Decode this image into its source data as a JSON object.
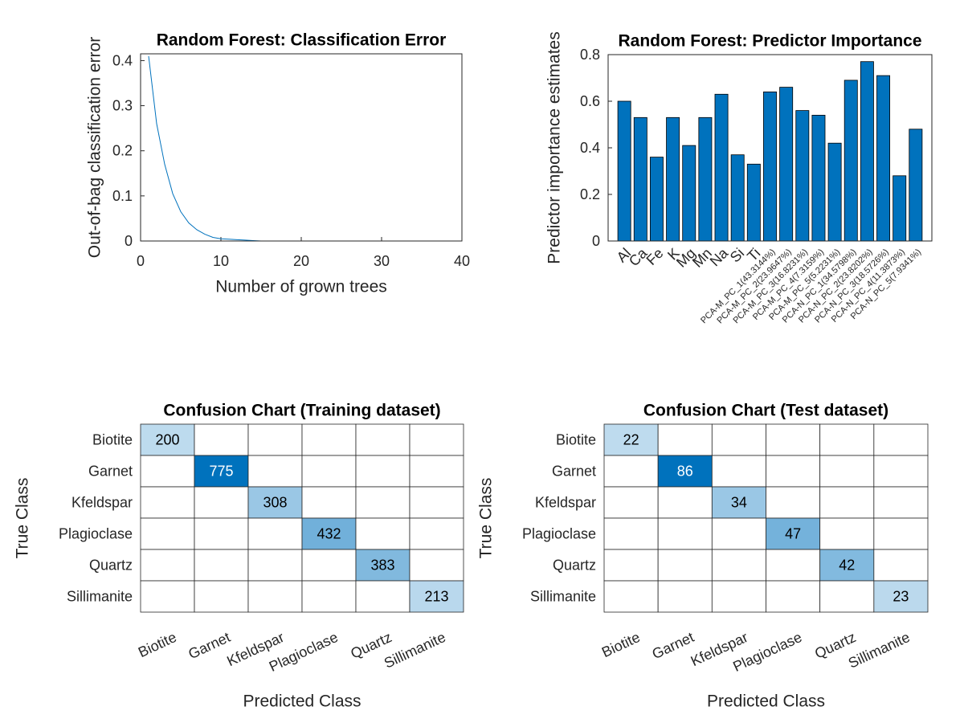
{
  "chart_data": [
    {
      "type": "line",
      "title": "Random Forest: Classification Error",
      "xlabel": "Number of grown trees",
      "ylabel": "Out-of-bag classification error",
      "x": [
        1,
        2,
        3,
        4,
        5,
        6,
        7,
        8,
        9,
        10,
        11,
        12,
        13,
        14,
        15,
        16,
        17,
        18,
        19,
        20,
        21,
        22,
        23,
        24,
        25,
        26,
        27,
        28,
        29,
        30,
        31,
        32,
        33,
        34,
        35,
        36,
        37,
        38,
        39,
        40
      ],
      "values": [
        0.41,
        0.26,
        0.17,
        0.105,
        0.065,
        0.04,
        0.025,
        0.015,
        0.008,
        0.005,
        0.004,
        0.003,
        0.002,
        0.001,
        0,
        0,
        0,
        0,
        0,
        0,
        0,
        0,
        0,
        0,
        0,
        0,
        0,
        0,
        0,
        0,
        0,
        0,
        0,
        0,
        0,
        0,
        0,
        0,
        0,
        0
      ],
      "color": "#0072bd",
      "xlim": [
        0,
        40
      ],
      "ylim": [
        0,
        0.415
      ],
      "xticks": [
        0,
        10,
        20,
        30,
        40
      ],
      "yticks": [
        0,
        0.1,
        0.2,
        0.3,
        0.4
      ]
    },
    {
      "type": "bar",
      "title": "Random Forest: Predictor Importance",
      "ylabel": "Predictor importance estimates",
      "categories": [
        "Al",
        "Ca",
        "Fe",
        "K",
        "Mg",
        "Mn",
        "Na",
        "Si",
        "Ti",
        "PCA-M_PC_1(43.3144%)",
        "PCA-M_PC_2(23.9647%)",
        "PCA-M_PC_3(16.8231%)",
        "PCA-M_PC_4(7.3159%)",
        "PCA-M_PC_5(5.2231%)",
        "PCA-N_PC_1(34.5798%)",
        "PCA-N_PC_2(23.8202%)",
        "PCA-N_PC_3(18.5726%)",
        "PCA-N_PC_4(11.3873%)",
        "PCA-N_PC_5(7.9341%)"
      ],
      "values": [
        0.6,
        0.53,
        0.36,
        0.53,
        0.41,
        0.53,
        0.63,
        0.37,
        0.33,
        0.64,
        0.66,
        0.56,
        0.54,
        0.42,
        0.69,
        0.77,
        0.71,
        0.28,
        0.48
      ],
      "color": "#0072bd",
      "ylim": [
        0,
        0.8
      ],
      "yticks": [
        0,
        0.2,
        0.4,
        0.6,
        0.8
      ]
    },
    {
      "type": "confusion",
      "title": "Confusion Chart (Training dataset)",
      "xlabel": "Predicted Class",
      "ylabel": "True Class",
      "classes": [
        "Biotite",
        "Garnet",
        "Kfeldspar",
        "Plagioclase",
        "Quartz",
        "Sillimanite"
      ],
      "matrix": [
        [
          200,
          0,
          0,
          0,
          0,
          0
        ],
        [
          0,
          775,
          0,
          0,
          0,
          0
        ],
        [
          0,
          0,
          308,
          0,
          0,
          0
        ],
        [
          0,
          0,
          0,
          432,
          0,
          0
        ],
        [
          0,
          0,
          0,
          0,
          383,
          0
        ],
        [
          0,
          0,
          0,
          0,
          0,
          213
        ]
      ],
      "color": "#0072bd"
    },
    {
      "type": "confusion",
      "title": "Confusion Chart (Test dataset)",
      "xlabel": "Predicted Class",
      "ylabel": "True Class",
      "classes": [
        "Biotite",
        "Garnet",
        "Kfeldspar",
        "Plagioclase",
        "Quartz",
        "Sillimanite"
      ],
      "matrix": [
        [
          22,
          0,
          0,
          0,
          0,
          0
        ],
        [
          0,
          86,
          0,
          0,
          0,
          0
        ],
        [
          0,
          0,
          34,
          0,
          0,
          0
        ],
        [
          0,
          0,
          0,
          47,
          0,
          0
        ],
        [
          0,
          0,
          0,
          0,
          42,
          0
        ],
        [
          0,
          0,
          0,
          0,
          0,
          23
        ]
      ],
      "color": "#0072bd"
    }
  ]
}
